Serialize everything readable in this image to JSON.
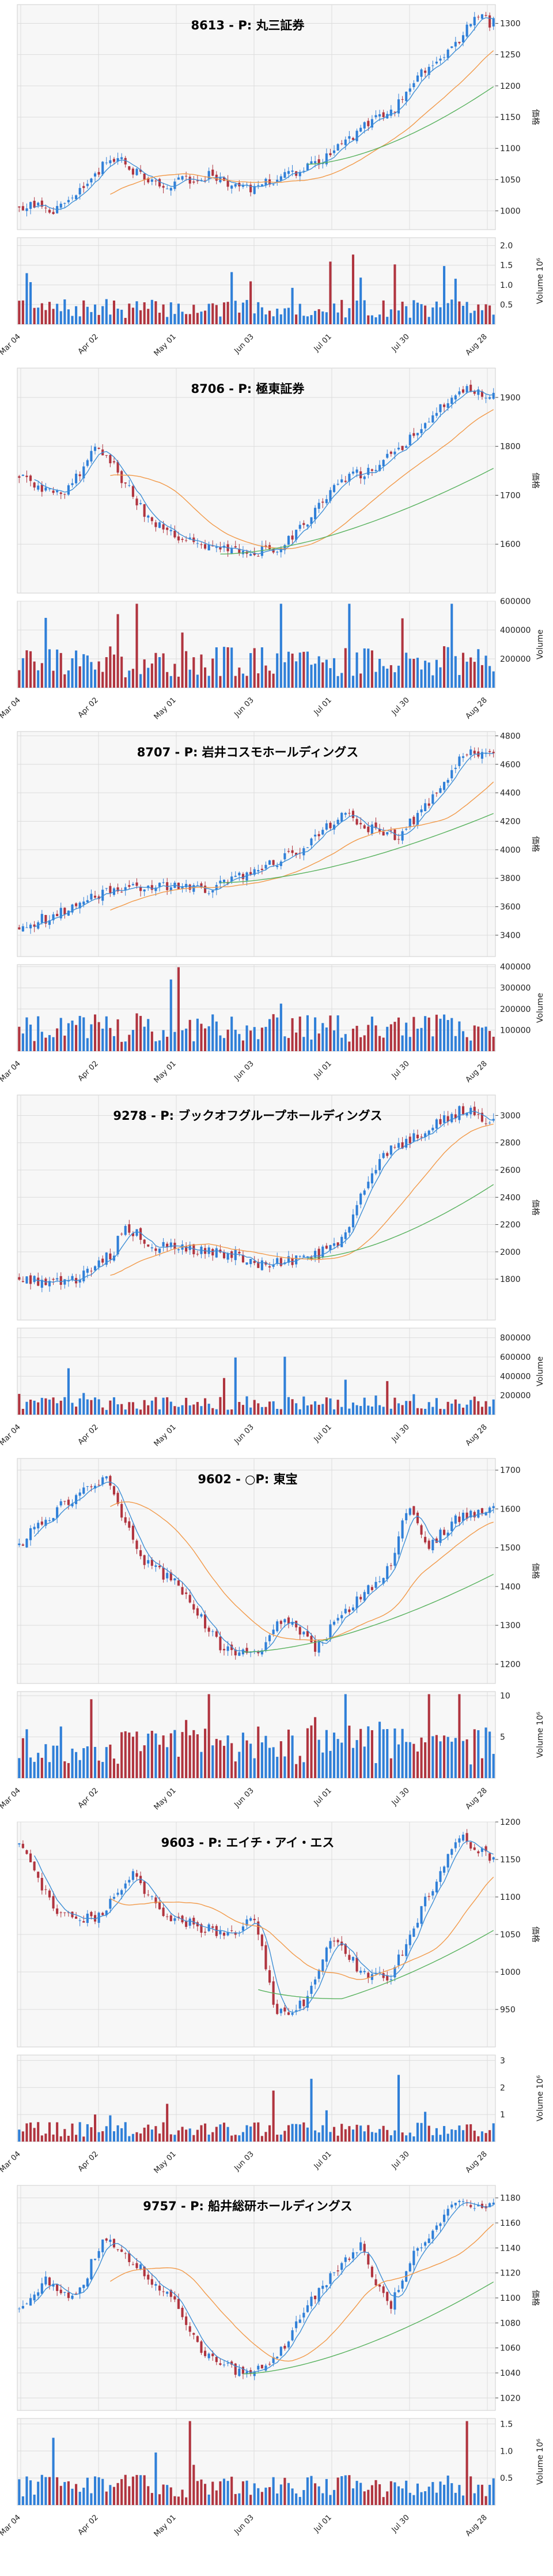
{
  "x_labels": [
    "Mar 04",
    "Apr 02",
    "May 01",
    "Jun 03",
    "Jul 01",
    "Jul 30",
    "Aug 28"
  ],
  "price_axis_label": "価格",
  "volume_axis_label": "Volume",
  "colors": {
    "up": "#2f7fd8",
    "down": "#b0343f",
    "ma_short": "#3f8fd6",
    "ma_mid": "#f29a4a",
    "ma_long": "#58b25e"
  },
  "chart_data": [
    {
      "type": "candlestick",
      "title": "8613 - P: 丸三証券",
      "ylim": [
        970,
        1330
      ],
      "yticks": [
        1000,
        1050,
        1100,
        1150,
        1200,
        1250,
        1300
      ],
      "start": 1010,
      "end": 1300,
      "low": 980,
      "high": 1315,
      "path": [
        [
          0,
          1010
        ],
        [
          0.08,
          1000
        ],
        [
          0.16,
          1060
        ],
        [
          0.2,
          1085
        ],
        [
          0.3,
          1040
        ],
        [
          0.4,
          1055
        ],
        [
          0.48,
          1035
        ],
        [
          0.56,
          1055
        ],
        [
          0.64,
          1080
        ],
        [
          0.72,
          1130
        ],
        [
          0.8,
          1170
        ],
        [
          0.86,
          1230
        ],
        [
          0.93,
          1275
        ],
        [
          0.96,
          1310
        ],
        [
          1,
          1300
        ]
      ],
      "ma_long_start": 0.6,
      "volume_label": "Volume 10⁶",
      "vlim": [
        0,
        2.2
      ],
      "vticks": [
        0.5,
        1.0,
        1.5,
        2.0
      ],
      "vtick_labels": [
        "0.5",
        "1.0",
        "1.5",
        "2.0"
      ],
      "vol_base": 0.4
    },
    {
      "type": "candlestick",
      "title": "8706 - P: 極東証券",
      "ylim": [
        1500,
        1960
      ],
      "yticks": [
        1600,
        1700,
        1800,
        1900
      ],
      "start": 1740,
      "end": 1900,
      "low": 1555,
      "high": 1940,
      "path": [
        [
          0,
          1740
        ],
        [
          0.05,
          1710
        ],
        [
          0.1,
          1705
        ],
        [
          0.16,
          1800
        ],
        [
          0.2,
          1760
        ],
        [
          0.28,
          1640
        ],
        [
          0.38,
          1600
        ],
        [
          0.48,
          1585
        ],
        [
          0.55,
          1590
        ],
        [
          0.6,
          1640
        ],
        [
          0.68,
          1730
        ],
        [
          0.76,
          1760
        ],
        [
          0.86,
          1850
        ],
        [
          0.93,
          1915
        ],
        [
          1,
          1900
        ]
      ],
      "ma_long_start": 0.42,
      "volume_label": "Volume",
      "vlim": [
        0,
        600000
      ],
      "vticks": [
        200000,
        400000,
        600000
      ],
      "vtick_labels": [
        "200000",
        "400000",
        "600000"
      ],
      "vol_base": 180000
    },
    {
      "type": "candlestick",
      "title": "8707 - P: 岩井コスモホールディングス",
      "ylim": [
        3250,
        4830
      ],
      "yticks": [
        3400,
        3600,
        3800,
        4000,
        4200,
        4400,
        4600,
        4800
      ],
      "start": 3450,
      "end": 4650,
      "low": 3330,
      "high": 4790,
      "path": [
        [
          0,
          3450
        ],
        [
          0.08,
          3550
        ],
        [
          0.2,
          3730
        ],
        [
          0.3,
          3760
        ],
        [
          0.4,
          3720
        ],
        [
          0.5,
          3850
        ],
        [
          0.6,
          4000
        ],
        [
          0.68,
          4250
        ],
        [
          0.74,
          4150
        ],
        [
          0.8,
          4100
        ],
        [
          0.88,
          4380
        ],
        [
          0.94,
          4700
        ],
        [
          1,
          4650
        ]
      ],
      "ma_long_start": 0.42,
      "volume_label": "Volume",
      "vlim": [
        0,
        410000
      ],
      "vticks": [
        100000,
        200000,
        300000,
        400000
      ],
      "vtick_labels": [
        "100000",
        "200000",
        "300000",
        "400000"
      ],
      "vol_base": 110000
    },
    {
      "type": "candlestick",
      "title": "9278 - P: ブックオフグループホールディングス",
      "ylim": [
        1500,
        3150
      ],
      "yticks": [
        1800,
        2000,
        2200,
        2400,
        2600,
        2800,
        3000
      ],
      "start": 1800,
      "end": 2950,
      "low": 1700,
      "high": 3080,
      "path": [
        [
          0,
          1800
        ],
        [
          0.1,
          1760
        ],
        [
          0.2,
          2000
        ],
        [
          0.22,
          2200
        ],
        [
          0.28,
          2050
        ],
        [
          0.38,
          2020
        ],
        [
          0.46,
          1980
        ],
        [
          0.52,
          1900
        ],
        [
          0.62,
          1960
        ],
        [
          0.68,
          2100
        ],
        [
          0.76,
          2700
        ],
        [
          0.86,
          2900
        ],
        [
          0.94,
          3050
        ],
        [
          1,
          2950
        ]
      ],
      "ma_long_start": 0.6,
      "volume_label": "Volume",
      "vlim": [
        0,
        900000
      ],
      "vticks": [
        200000,
        400000,
        600000,
        800000
      ],
      "vtick_labels": [
        "200000",
        "400000",
        "600000",
        "800000"
      ],
      "vol_base": 120000
    },
    {
      "type": "candlestick",
      "title": "9602 - ○P: 東宝",
      "ylim": [
        1150,
        1730
      ],
      "yticks": [
        1200,
        1300,
        1400,
        1500,
        1600,
        1700
      ],
      "start": 1510,
      "end": 1600,
      "low": 1205,
      "high": 1710,
      "path": [
        [
          0,
          1510
        ],
        [
          0.08,
          1600
        ],
        [
          0.18,
          1680
        ],
        [
          0.26,
          1470
        ],
        [
          0.34,
          1400
        ],
        [
          0.42,
          1250
        ],
        [
          0.5,
          1220
        ],
        [
          0.56,
          1330
        ],
        [
          0.62,
          1240
        ],
        [
          0.7,
          1350
        ],
        [
          0.78,
          1450
        ],
        [
          0.82,
          1620
        ],
        [
          0.86,
          1500
        ],
        [
          0.92,
          1570
        ],
        [
          1,
          1600
        ]
      ],
      "ma_long_start": 0.47,
      "volume_label": "Volume 10⁶",
      "vlim": [
        0,
        10.5
      ],
      "vticks": [
        5,
        10
      ],
      "vtick_labels": [
        "5",
        "10"
      ],
      "vol_base": 4
    },
    {
      "type": "candlestick",
      "title": "9603 - P: エイチ・アイ・エス",
      "ylim": [
        900,
        1200
      ],
      "yticks": [
        950,
        1000,
        1050,
        1100,
        1150,
        1200
      ],
      "start": 1170,
      "end": 1150,
      "low": 920,
      "high": 1190,
      "path": [
        [
          0,
          1170
        ],
        [
          0.08,
          1080
        ],
        [
          0.16,
          1070
        ],
        [
          0.24,
          1130
        ],
        [
          0.3,
          1080
        ],
        [
          0.38,
          1060
        ],
        [
          0.44,
          1050
        ],
        [
          0.5,
          1070
        ],
        [
          0.54,
          940
        ],
        [
          0.6,
          960
        ],
        [
          0.66,
          1050
        ],
        [
          0.72,
          1000
        ],
        [
          0.78,
          990
        ],
        [
          0.86,
          1100
        ],
        [
          0.93,
          1180
        ],
        [
          1,
          1150
        ]
      ],
      "ma_long_start": 0.5,
      "volume_label": "Volume 10⁶",
      "vlim": [
        0,
        3.2
      ],
      "vticks": [
        1,
        2,
        3
      ],
      "vtick_labels": [
        "1",
        "2",
        "3"
      ],
      "vol_base": 0.45
    },
    {
      "type": "candlestick",
      "title": "9757 - P: 船井総研ホールディングス",
      "ylim": [
        1010,
        1190
      ],
      "yticks": [
        1020,
        1040,
        1060,
        1080,
        1100,
        1120,
        1140,
        1160,
        1180
      ],
      "start": 1090,
      "end": 1175,
      "low": 1025,
      "high": 1185,
      "path": [
        [
          0,
          1090
        ],
        [
          0.06,
          1115
        ],
        [
          0.12,
          1100
        ],
        [
          0.18,
          1150
        ],
        [
          0.24,
          1130
        ],
        [
          0.32,
          1100
        ],
        [
          0.38,
          1060
        ],
        [
          0.46,
          1040
        ],
        [
          0.54,
          1050
        ],
        [
          0.6,
          1090
        ],
        [
          0.66,
          1120
        ],
        [
          0.72,
          1140
        ],
        [
          0.78,
          1090
        ],
        [
          0.84,
          1140
        ],
        [
          0.92,
          1175
        ],
        [
          1,
          1175
        ]
      ],
      "ma_long_start": 0.47,
      "volume_label": "Volume 10⁶",
      "vlim": [
        0,
        1.6
      ],
      "vticks": [
        0.5,
        1.0,
        1.5
      ],
      "vtick_labels": [
        "0.5",
        "1.0",
        "1.5"
      ],
      "vol_base": 0.35
    }
  ]
}
